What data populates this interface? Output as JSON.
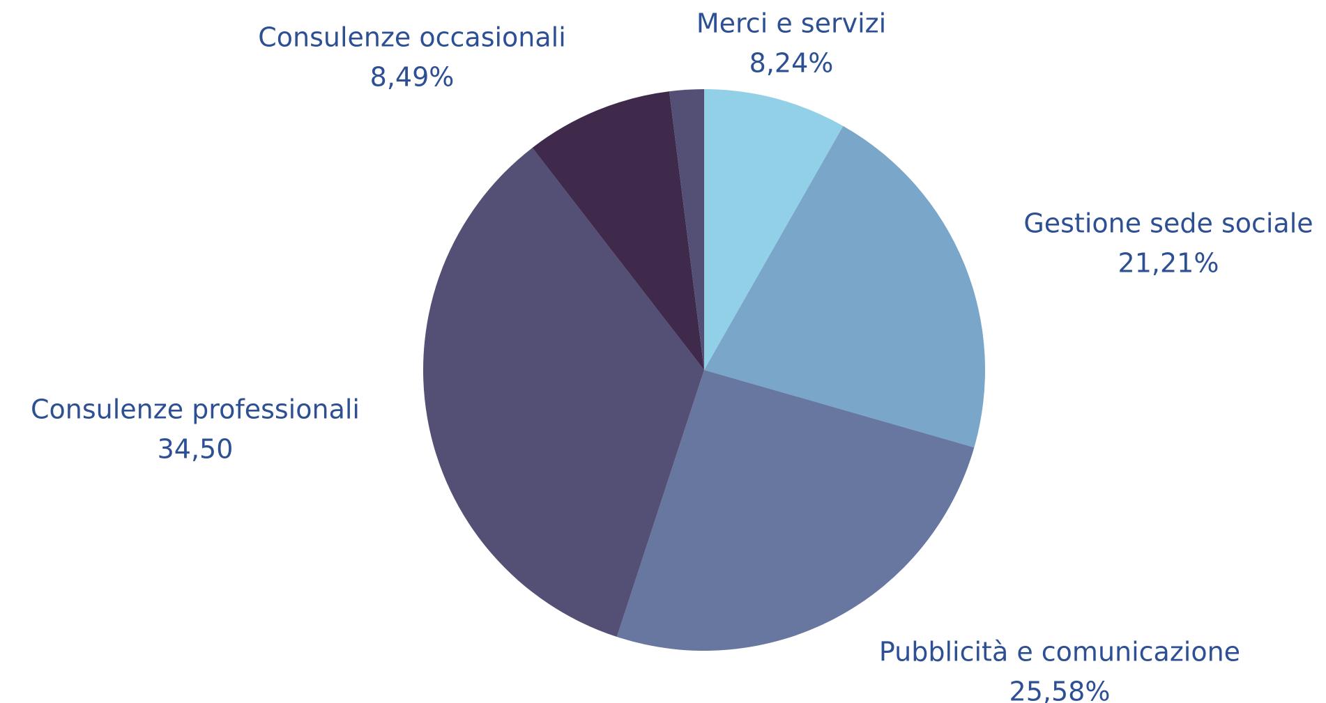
{
  "chart_data": {
    "type": "pie",
    "categories": [
      "Merci e servizi",
      "Gestione sede sociale",
      "Pubblicità e comunicazione",
      "Consulenze professionali",
      "Consulenze occasionali",
      null
    ],
    "values": [
      8.24,
      21.21,
      25.58,
      34.5,
      8.49,
      1.98
    ],
    "value_labels": [
      "8,24%",
      "21,21%",
      "25,58%",
      "34,50",
      "8,49%",
      null
    ],
    "colors": [
      "#92d0e8",
      "#79a6c9",
      "#6777a0",
      "#534f75",
      "#3f2a4c",
      "#534f75"
    ]
  }
}
